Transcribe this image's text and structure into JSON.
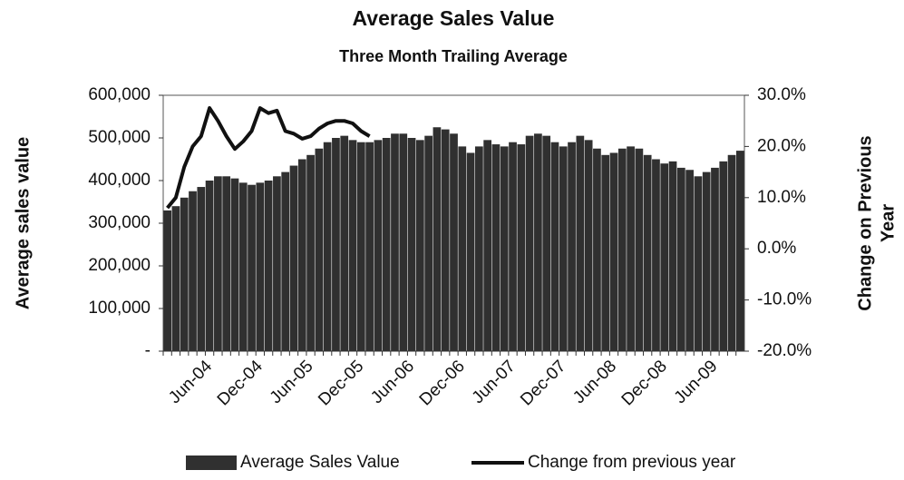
{
  "chart_data": {
    "type": "bar_line",
    "title": "Average Sales Value",
    "subtitle": "Three Month Trailing Average",
    "y_label": "Average sales value",
    "y2_label_lines": [
      "Change on Previous",
      "Year"
    ],
    "categories": [
      null,
      null,
      null,
      null,
      null,
      "Jun-04",
      null,
      null,
      null,
      null,
      null,
      "Dec-04",
      null,
      null,
      null,
      null,
      null,
      "Jun-05",
      null,
      null,
      null,
      null,
      null,
      "Dec-05",
      null,
      null,
      null,
      null,
      null,
      "Jun-06",
      null,
      null,
      null,
      null,
      null,
      "Dec-06",
      null,
      null,
      null,
      null,
      null,
      "Jun-07",
      null,
      null,
      null,
      null,
      null,
      "Dec-07",
      null,
      null,
      null,
      null,
      null,
      "Jun-08",
      null,
      null,
      null,
      null,
      null,
      "Dec-08",
      null,
      null,
      null,
      null,
      null,
      "Jun-09",
      null,
      null,
      null
    ],
    "series": [
      {
        "name": "Average Sales Value",
        "color": "#303030",
        "type": "bar",
        "values": [
          330000,
          340000,
          360000,
          375000,
          385000,
          400000,
          410000,
          410000,
          405000,
          395000,
          390000,
          395000,
          400000,
          410000,
          420000,
          435000,
          450000,
          460000,
          475000,
          490000,
          500000,
          505000,
          495000,
          490000,
          490000,
          495000,
          500000,
          510000,
          510000,
          500000,
          495000,
          505000,
          525000,
          520000,
          510000,
          480000,
          465000,
          480000,
          495000,
          485000,
          480000,
          490000,
          485000,
          505000,
          510000,
          505000,
          490000,
          480000,
          490000,
          505000,
          495000,
          475000,
          460000,
          465000,
          475000,
          480000,
          475000,
          460000,
          450000,
          440000,
          445000,
          430000,
          425000,
          410000,
          420000,
          430000,
          445000,
          460000,
          470000
        ]
      },
      {
        "name": "Change from previous year",
        "color": "#111111",
        "type": "line",
        "axis": "y2",
        "values": [
          8,
          10,
          16,
          20,
          22,
          27.5,
          25,
          22,
          19.5,
          21,
          23,
          27.5,
          26.5,
          27,
          23,
          22.5,
          21.5,
          22,
          23.5,
          24.5,
          25,
          25,
          24.5,
          23,
          22,
          null,
          null,
          null,
          null,
          null,
          null,
          null,
          null,
          null,
          null,
          null,
          null,
          null,
          null,
          null,
          null,
          null,
          null,
          null,
          null,
          null,
          null,
          null,
          null,
          null,
          null,
          null,
          null,
          null,
          null,
          null,
          null,
          null,
          null,
          null,
          null,
          null,
          null,
          null,
          null,
          null,
          null,
          null,
          null
        ]
      }
    ],
    "ylim": [
      0,
      600000
    ],
    "yticks": [
      {
        "value": 0,
        "label": "-"
      },
      {
        "value": 100000,
        "label": "100,000"
      },
      {
        "value": 200000,
        "label": "200,000"
      },
      {
        "value": 300000,
        "label": "300,000"
      },
      {
        "value": 400000,
        "label": "400,000"
      },
      {
        "value": 500000,
        "label": "500,000"
      },
      {
        "value": 600000,
        "label": "600,000"
      }
    ],
    "y2lim": [
      -20,
      30
    ],
    "y2ticks": [
      {
        "value": -20,
        "label": "-20.0%"
      },
      {
        "value": -10,
        "label": "-10.0%"
      },
      {
        "value": 0,
        "label": "0.0%"
      },
      {
        "value": 10,
        "label": "10.0%"
      },
      {
        "value": 20,
        "label": "20.0%"
      },
      {
        "value": 30,
        "label": "30.0%"
      }
    ],
    "legend": "bottom"
  }
}
